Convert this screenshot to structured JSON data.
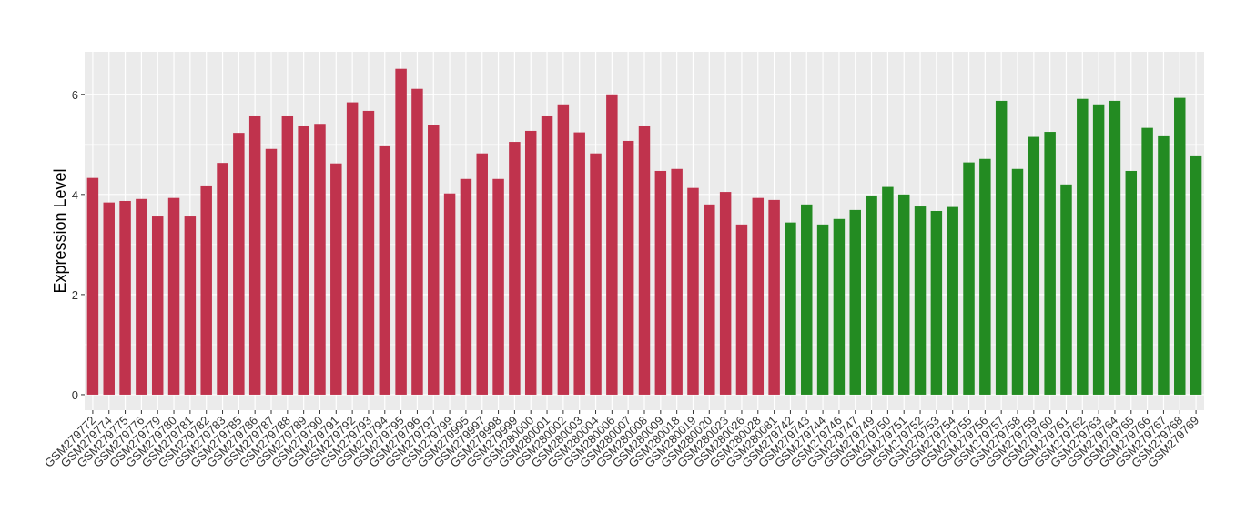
{
  "chart_data": {
    "type": "bar",
    "y_label": "Expression Level",
    "categories": [
      "GSM279772",
      "GSM279774",
      "GSM279775",
      "GSM279776",
      "GSM279779",
      "GSM279780",
      "GSM279781",
      "GSM279782",
      "GSM279783",
      "GSM279785",
      "GSM279786",
      "GSM279787",
      "GSM279788",
      "GSM279789",
      "GSM279790",
      "GSM279791",
      "GSM279792",
      "GSM279793",
      "GSM279794",
      "GSM279795",
      "GSM279796",
      "GSM279797",
      "GSM279799",
      "GSM279995",
      "GSM279997",
      "GSM279998",
      "GSM279999",
      "GSM280000",
      "GSM280001",
      "GSM280002",
      "GSM280003",
      "GSM280004",
      "GSM280006",
      "GSM280007",
      "GSM280008",
      "GSM280009",
      "GSM280018",
      "GSM280019",
      "GSM280020",
      "GSM280023",
      "GSM280026",
      "GSM280028",
      "GSM280081",
      "GSM279742",
      "GSM279743",
      "GSM279744",
      "GSM279746",
      "GSM279747",
      "GSM279749",
      "GSM279750",
      "GSM279751",
      "GSM279752",
      "GSM279753",
      "GSM279754",
      "GSM279755",
      "GSM279756",
      "GSM279757",
      "GSM279758",
      "GSM279759",
      "GSM279760",
      "GSM279761",
      "GSM279762",
      "GSM279763",
      "GSM279764",
      "GSM279765",
      "GSM279766",
      "GSM279767",
      "GSM279768",
      "GSM279769"
    ],
    "values": [
      4.33,
      3.84,
      3.87,
      3.91,
      3.56,
      3.93,
      3.56,
      4.18,
      4.63,
      5.23,
      5.56,
      4.91,
      5.56,
      5.36,
      5.41,
      4.62,
      5.84,
      5.67,
      4.98,
      6.51,
      6.11,
      5.38,
      4.02,
      4.31,
      4.82,
      4.31,
      5.05,
      5.27,
      5.56,
      5.8,
      5.24,
      4.82,
      6.0,
      5.07,
      5.36,
      4.47,
      4.51,
      4.13,
      3.8,
      4.05,
      3.4,
      3.93,
      3.89,
      3.44,
      3.8,
      3.4,
      3.51,
      3.69,
      3.98,
      4.15,
      4.0,
      3.76,
      3.67,
      3.75,
      4.64,
      4.71,
      5.87,
      4.51,
      5.15,
      5.25,
      4.2,
      5.91,
      5.8,
      5.87,
      4.47,
      5.33,
      5.18,
      5.93,
      4.78
    ],
    "colors": [
      "#c0334d",
      "#c0334d",
      "#c0334d",
      "#c0334d",
      "#c0334d",
      "#c0334d",
      "#c0334d",
      "#c0334d",
      "#c0334d",
      "#c0334d",
      "#c0334d",
      "#c0334d",
      "#c0334d",
      "#c0334d",
      "#c0334d",
      "#c0334d",
      "#c0334d",
      "#c0334d",
      "#c0334d",
      "#c0334d",
      "#c0334d",
      "#c0334d",
      "#c0334d",
      "#c0334d",
      "#c0334d",
      "#c0334d",
      "#c0334d",
      "#c0334d",
      "#c0334d",
      "#c0334d",
      "#c0334d",
      "#c0334d",
      "#c0334d",
      "#c0334d",
      "#c0334d",
      "#c0334d",
      "#c0334d",
      "#c0334d",
      "#c0334d",
      "#c0334d",
      "#c0334d",
      "#c0334d",
      "#c0334d",
      "#238b22",
      "#238b22",
      "#238b22",
      "#238b22",
      "#238b22",
      "#238b22",
      "#238b22",
      "#238b22",
      "#238b22",
      "#238b22",
      "#238b22",
      "#238b22",
      "#238b22",
      "#238b22",
      "#238b22",
      "#238b22",
      "#238b22",
      "#238b22",
      "#238b22",
      "#238b22",
      "#238b22",
      "#238b22",
      "#238b22",
      "#238b22",
      "#238b22",
      "#238b22"
    ],
    "ylim": [
      -0.31,
      6.85
    ],
    "yticks": [
      0,
      2,
      4,
      6
    ],
    "grid": true,
    "minor_grid": true
  }
}
